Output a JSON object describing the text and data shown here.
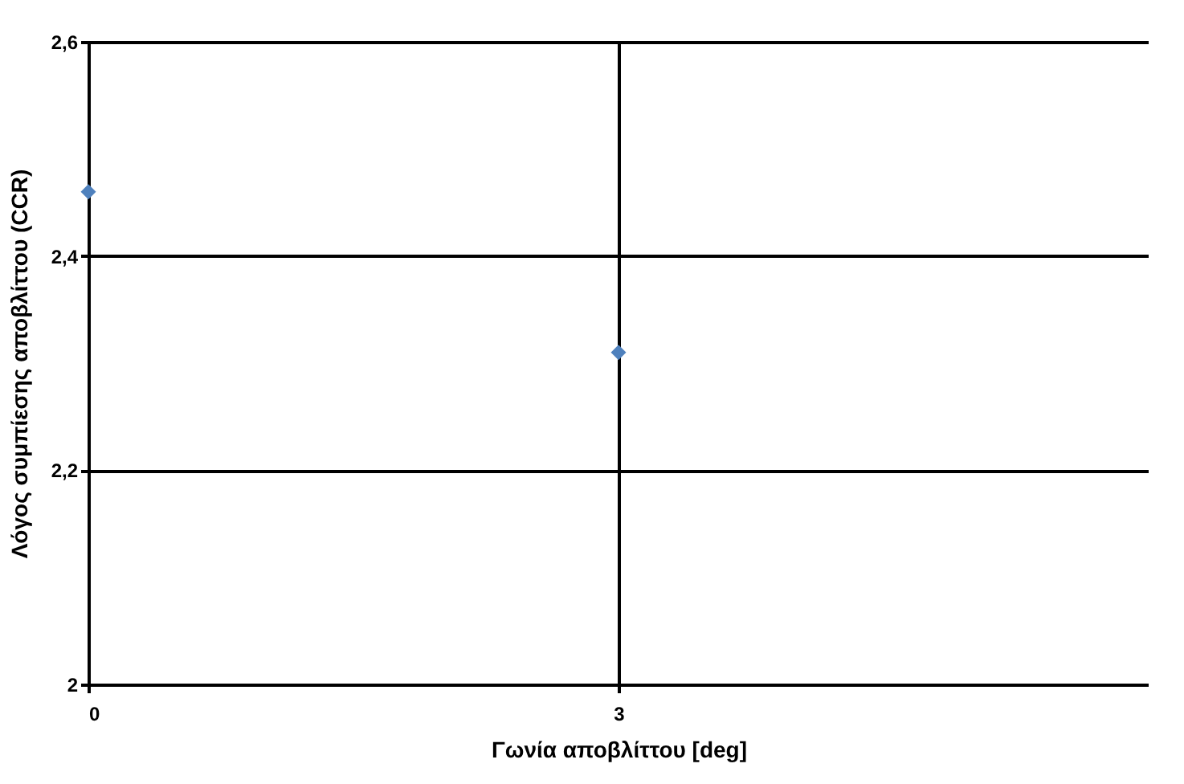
{
  "chart_data": {
    "type": "scatter",
    "xlabel": "Γωνία αποβλίττου [deg]",
    "ylabel": "Λόγος συμπίεσης αποβλίττου (CCR)",
    "x": [
      0,
      3
    ],
    "series": [
      {
        "color": "#4f81bd",
        "values": [
          2.46,
          2.31
        ]
      }
    ],
    "xlim": [
      0,
      6
    ],
    "xticks": [
      0,
      3
    ],
    "ylim": [
      2,
      2.6
    ],
    "yticks": [
      {
        "value": 2,
        "label": "2"
      },
      {
        "value": 2.2,
        "label": "2,2"
      },
      {
        "value": 2.4,
        "label": "2,4"
      },
      {
        "value": 2.6,
        "label": "2,6"
      }
    ],
    "grid": true,
    "marker": "diamond"
  }
}
